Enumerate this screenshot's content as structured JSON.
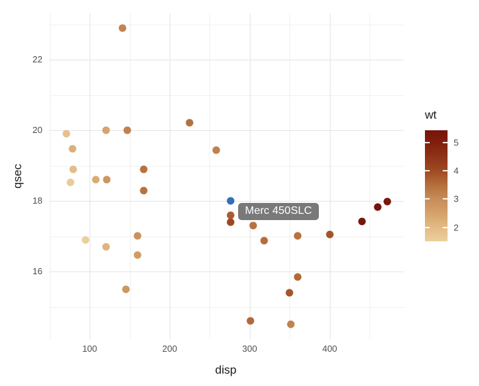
{
  "window": {
    "background": "#ffffff"
  },
  "colors": {
    "grid_major": "#e4e4e4",
    "grid_minor": "#f1f1f1",
    "tick_label": "#4d4d4d",
    "axis_title": "#1a1a1a",
    "tooltip_bg": "rgba(88,88,88,0.8)",
    "tooltip_text": "#ffffff",
    "highlight_point": "#316fb9"
  },
  "chart_data": {
    "type": "scatter",
    "title": "",
    "xlabel": "disp",
    "ylabel": "qsec",
    "x_ticks": [
      100,
      200,
      300,
      400
    ],
    "x_minor_ticks": [
      50,
      150,
      250,
      350,
      450
    ],
    "y_ticks": [
      16,
      18,
      20,
      22
    ],
    "y_minor_ticks": [
      15,
      17,
      19,
      21,
      23
    ],
    "xlim": [
      49.5,
      492.5
    ],
    "ylim": [
      14.08,
      23.32
    ],
    "grid": "on",
    "legend_position": "right",
    "legend": {
      "title": "wt",
      "ticks": [
        2,
        3,
        4,
        5
      ],
      "limits": [
        1.513,
        5.424
      ]
    },
    "color_scale_stops": [
      [
        1.5,
        "#ECD09F"
      ],
      [
        2.0,
        "#E3BA84"
      ],
      [
        2.5,
        "#D5A26B"
      ],
      [
        3.0,
        "#C68D58"
      ],
      [
        3.5,
        "#B56E3C"
      ],
      [
        4.0,
        "#9E4A22"
      ],
      [
        4.5,
        "#8F3318"
      ],
      [
        5.0,
        "#801E0E"
      ],
      [
        5.45,
        "#75140A"
      ]
    ],
    "highlight_color": "#316fb9",
    "tooltip": {
      "text": "Merc 450SLC"
    },
    "points": [
      {
        "disp": 160.0,
        "qsec": 16.46,
        "wt": 2.62
      },
      {
        "disp": 160.0,
        "qsec": 17.02,
        "wt": 2.875
      },
      {
        "disp": 108.0,
        "qsec": 18.61,
        "wt": 2.32
      },
      {
        "disp": 258.0,
        "qsec": 19.44,
        "wt": 3.215
      },
      {
        "disp": 360.0,
        "qsec": 17.02,
        "wt": 3.44
      },
      {
        "disp": 225.0,
        "qsec": 20.22,
        "wt": 3.46
      },
      {
        "disp": 360.0,
        "qsec": 15.84,
        "wt": 3.57
      },
      {
        "disp": 146.7,
        "qsec": 20.0,
        "wt": 3.19
      },
      {
        "disp": 140.8,
        "qsec": 22.9,
        "wt": 3.15
      },
      {
        "disp": 167.6,
        "qsec": 18.3,
        "wt": 3.44
      },
      {
        "disp": 167.6,
        "qsec": 18.9,
        "wt": 3.44
      },
      {
        "disp": 275.8,
        "qsec": 17.4,
        "wt": 4.07
      },
      {
        "disp": 275.8,
        "qsec": 17.6,
        "wt": 3.73
      },
      {
        "disp": 275.8,
        "qsec": 18.0,
        "wt": 3.78,
        "highlighted": true
      },
      {
        "disp": 472.0,
        "qsec": 17.98,
        "wt": 5.25
      },
      {
        "disp": 460.0,
        "qsec": 17.82,
        "wt": 5.424
      },
      {
        "disp": 440.0,
        "qsec": 17.42,
        "wt": 5.345
      },
      {
        "disp": 78.7,
        "qsec": 19.47,
        "wt": 2.2
      },
      {
        "disp": 75.7,
        "qsec": 18.52,
        "wt": 1.615
      },
      {
        "disp": 71.1,
        "qsec": 19.9,
        "wt": 1.835
      },
      {
        "disp": 120.1,
        "qsec": 20.01,
        "wt": 2.465
      },
      {
        "disp": 318.0,
        "qsec": 16.87,
        "wt": 3.52
      },
      {
        "disp": 304.0,
        "qsec": 17.3,
        "wt": 3.435
      },
      {
        "disp": 350.0,
        "qsec": 15.41,
        "wt": 3.84
      },
      {
        "disp": 400.0,
        "qsec": 17.05,
        "wt": 3.845
      },
      {
        "disp": 79.0,
        "qsec": 18.9,
        "wt": 1.935
      },
      {
        "disp": 120.3,
        "qsec": 16.7,
        "wt": 2.14
      },
      {
        "disp": 95.1,
        "qsec": 16.9,
        "wt": 1.513
      },
      {
        "disp": 351.0,
        "qsec": 14.5,
        "wt": 3.17
      },
      {
        "disp": 145.0,
        "qsec": 15.5,
        "wt": 2.77
      },
      {
        "disp": 301.0,
        "qsec": 14.6,
        "wt": 3.57
      },
      {
        "disp": 121.0,
        "qsec": 18.6,
        "wt": 2.78
      }
    ]
  }
}
